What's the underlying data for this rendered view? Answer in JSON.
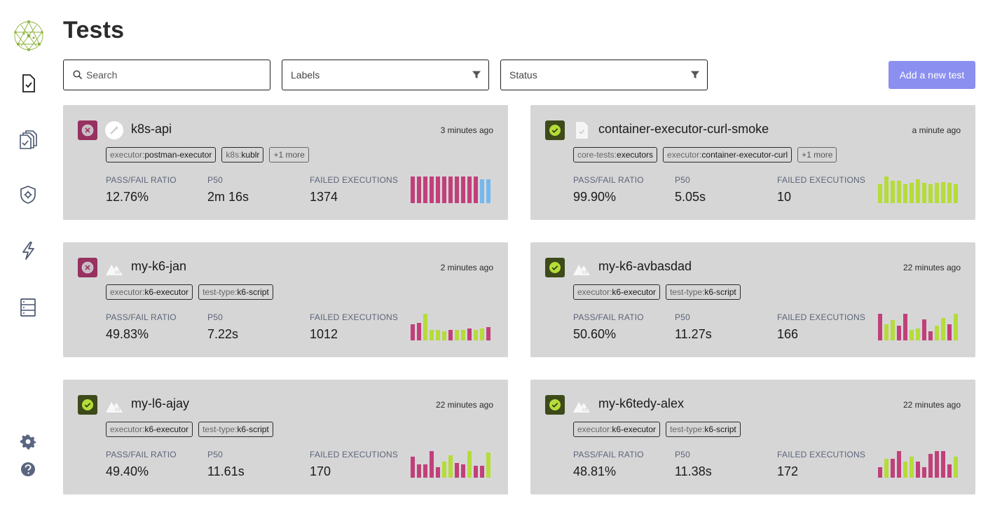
{
  "page": {
    "title": "Tests"
  },
  "toolbar": {
    "search_placeholder": "Search",
    "labels_placeholder": "Labels",
    "status_placeholder": "Status",
    "add_button": "Add a new test"
  },
  "metric_labels": {
    "pass_fail": "PASS/FAIL RATIO",
    "p50": "P50",
    "failed": "FAILED EXECUTIONS"
  },
  "colors": {
    "failed": "#c1407a",
    "passed": "#b5dc39",
    "running": "#74b8ee",
    "accent": "#8b8ff0"
  },
  "sidebar": {
    "icons": [
      "logo-icon",
      "tests-icon",
      "test-suites-icon",
      "executors-icon",
      "triggers-icon",
      "sources-icon",
      "settings-icon",
      "help-icon"
    ]
  },
  "tests": [
    {
      "name": "k8s-api",
      "time": "3 minutes ago",
      "status": "failed",
      "type": "postman-icon",
      "labels": [
        {
          "k": "executor:",
          "v": "postman-executor"
        },
        {
          "k": "k8s:",
          "v": "kublr"
        }
      ],
      "more": "+1 more",
      "pass_fail": "12.76%",
      "p50": "2m 16s",
      "failed": "1374",
      "executions": [
        {
          "s": "failed",
          "v": 1
        },
        {
          "s": "failed",
          "v": 1
        },
        {
          "s": "failed",
          "v": 1
        },
        {
          "s": "failed",
          "v": 1
        },
        {
          "s": "failed",
          "v": 1
        },
        {
          "s": "failed",
          "v": 1
        },
        {
          "s": "failed",
          "v": 1
        },
        {
          "s": "failed",
          "v": 1
        },
        {
          "s": "failed",
          "v": 1
        },
        {
          "s": "failed",
          "v": 1
        },
        {
          "s": "failed",
          "v": 1
        },
        {
          "s": "running",
          "v": 0.9
        },
        {
          "s": "running",
          "v": 0.9
        }
      ]
    },
    {
      "name": "container-executor-curl-smoke",
      "time": "a minute ago",
      "status": "passed",
      "type": "file-icon",
      "labels": [
        {
          "k": "core-tests:",
          "v": "executors"
        },
        {
          "k": "executor:",
          "v": "container-executor-curl"
        }
      ],
      "more": "+1 more",
      "pass_fail": "99.90%",
      "p50": "5.05s",
      "failed": "10",
      "executions": [
        {
          "s": "passed",
          "v": 0.7
        },
        {
          "s": "passed",
          "v": 1
        },
        {
          "s": "passed",
          "v": 0.85
        },
        {
          "s": "passed",
          "v": 0.85
        },
        {
          "s": "passed",
          "v": 0.7
        },
        {
          "s": "passed",
          "v": 0.75
        },
        {
          "s": "passed",
          "v": 0.9
        },
        {
          "s": "passed",
          "v": 0.75
        },
        {
          "s": "passed",
          "v": 0.7
        },
        {
          "s": "passed",
          "v": 0.75
        },
        {
          "s": "passed",
          "v": 0.8
        },
        {
          "s": "passed",
          "v": 0.75
        },
        {
          "s": "passed",
          "v": 0.7
        }
      ]
    },
    {
      "name": "my-k6-jan",
      "time": "2 minutes ago",
      "status": "failed",
      "type": "k6-icon",
      "labels": [
        {
          "k": "executor:",
          "v": "k6-executor"
        },
        {
          "k": "test-type:",
          "v": "k6-script"
        }
      ],
      "more": "",
      "pass_fail": "49.83%",
      "p50": "7.22s",
      "failed": "1012",
      "executions": [
        {
          "s": "failed",
          "v": 0.6
        },
        {
          "s": "failed",
          "v": 0.65
        },
        {
          "s": "passed",
          "v": 1
        },
        {
          "s": "passed",
          "v": 0.4
        },
        {
          "s": "passed",
          "v": 0.4
        },
        {
          "s": "passed",
          "v": 0.35
        },
        {
          "s": "failed",
          "v": 0.4
        },
        {
          "s": "passed",
          "v": 0.4
        },
        {
          "s": "passed",
          "v": 0.4
        },
        {
          "s": "failed",
          "v": 0.45
        },
        {
          "s": "passed",
          "v": 0.4
        },
        {
          "s": "passed",
          "v": 0.45
        },
        {
          "s": "failed",
          "v": 0.5
        }
      ]
    },
    {
      "name": "my-k6-avbasdad",
      "time": "22 minutes ago",
      "status": "passed",
      "type": "k6-icon",
      "labels": [
        {
          "k": "executor:",
          "v": "k6-executor"
        },
        {
          "k": "test-type:",
          "v": "k6-script"
        }
      ],
      "more": "",
      "pass_fail": "50.60%",
      "p50": "11.27s",
      "failed": "166",
      "executions": [
        {
          "s": "failed",
          "v": 1
        },
        {
          "s": "passed",
          "v": 0.6
        },
        {
          "s": "passed",
          "v": 0.75
        },
        {
          "s": "failed",
          "v": 0.55
        },
        {
          "s": "failed",
          "v": 1
        },
        {
          "s": "passed",
          "v": 0.4
        },
        {
          "s": "passed",
          "v": 0.45
        },
        {
          "s": "failed",
          "v": 0.8
        },
        {
          "s": "failed",
          "v": 0.35
        },
        {
          "s": "passed",
          "v": 0.55
        },
        {
          "s": "passed",
          "v": 0.85
        },
        {
          "s": "failed",
          "v": 0.6
        },
        {
          "s": "passed",
          "v": 1
        }
      ]
    },
    {
      "name": "my-l6-ajay",
      "time": "22 minutes ago",
      "status": "passed",
      "type": "k6-icon",
      "labels": [
        {
          "k": "executor:",
          "v": "k6-executor"
        },
        {
          "k": "test-type:",
          "v": "k6-script"
        }
      ],
      "more": "",
      "pass_fail": "49.40%",
      "p50": "11.61s",
      "failed": "170",
      "executions": [
        {
          "s": "failed",
          "v": 0.8
        },
        {
          "s": "failed",
          "v": 0.5
        },
        {
          "s": "failed",
          "v": 0.5
        },
        {
          "s": "failed",
          "v": 1
        },
        {
          "s": "failed",
          "v": 0.4
        },
        {
          "s": "passed",
          "v": 0.6
        },
        {
          "s": "passed",
          "v": 0.85
        },
        {
          "s": "failed",
          "v": 0.55
        },
        {
          "s": "failed",
          "v": 0.5
        },
        {
          "s": "passed",
          "v": 1
        },
        {
          "s": "failed",
          "v": 0.45
        },
        {
          "s": "failed",
          "v": 0.45
        },
        {
          "s": "passed",
          "v": 0.95
        }
      ]
    },
    {
      "name": "my-k6tedy-alex",
      "time": "22 minutes ago",
      "status": "passed",
      "type": "k6-icon",
      "labels": [
        {
          "k": "executor:",
          "v": "k6-executor"
        },
        {
          "k": "test-type:",
          "v": "k6-script"
        }
      ],
      "more": "",
      "pass_fail": "48.81%",
      "p50": "11.38s",
      "failed": "172",
      "executions": [
        {
          "s": "failed",
          "v": 0.4
        },
        {
          "s": "passed",
          "v": 0.7
        },
        {
          "s": "failed",
          "v": 0.7
        },
        {
          "s": "failed",
          "v": 1
        },
        {
          "s": "passed",
          "v": 0.6
        },
        {
          "s": "passed",
          "v": 0.8
        },
        {
          "s": "failed",
          "v": 0.6
        },
        {
          "s": "failed",
          "v": 0.4
        },
        {
          "s": "failed",
          "v": 0.9
        },
        {
          "s": "failed",
          "v": 1
        },
        {
          "s": "failed",
          "v": 1
        },
        {
          "s": "failed",
          "v": 0.5
        },
        {
          "s": "passed",
          "v": 0.8
        }
      ]
    }
  ]
}
